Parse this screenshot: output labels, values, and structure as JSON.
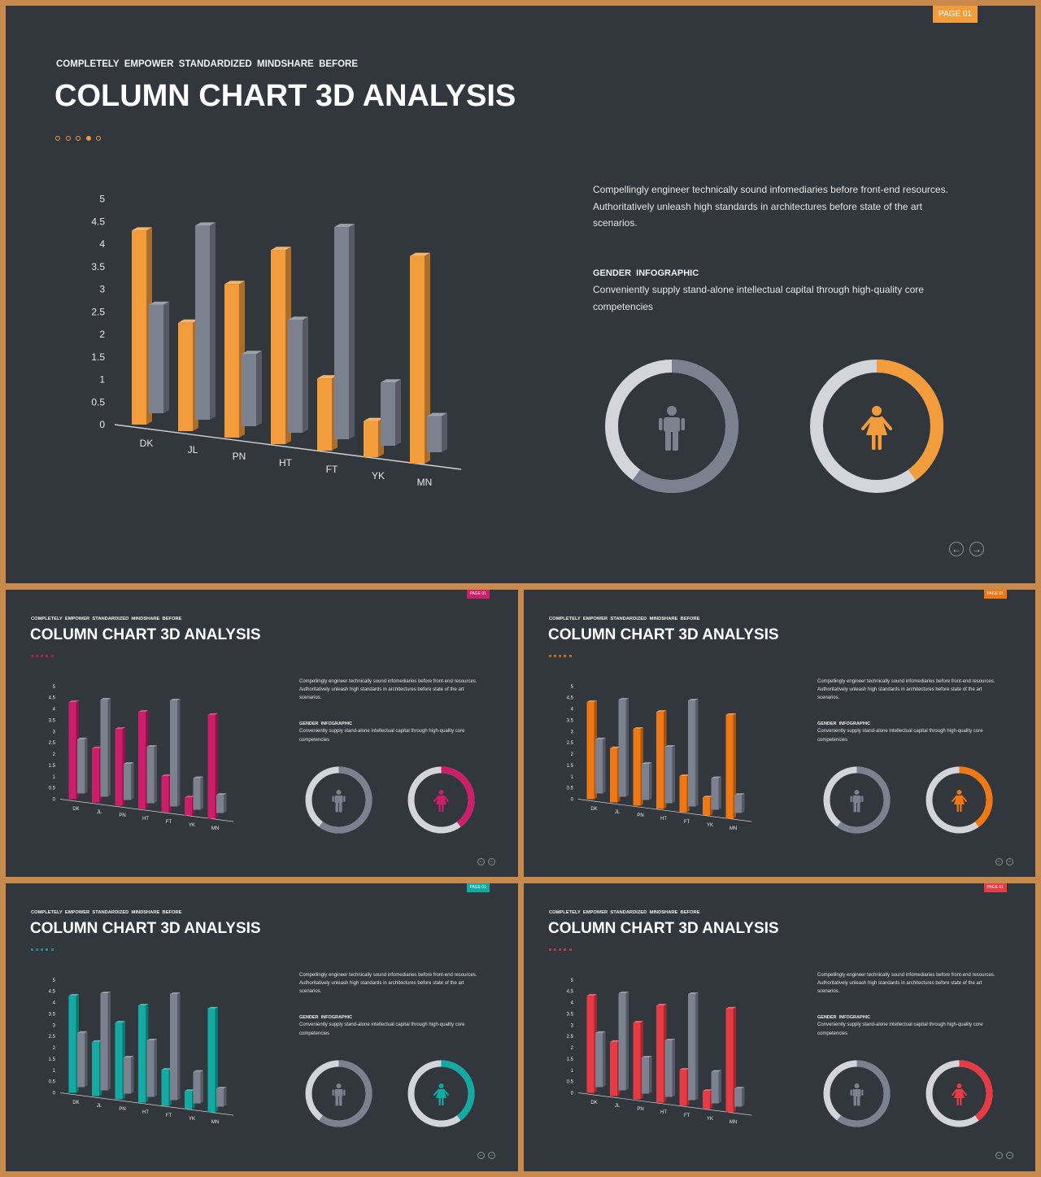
{
  "page_badge": "PAGE 01",
  "subtitle": "COMPLETELY  EMPOWER  STANDARDIZED  MINDSHARE  BEFORE",
  "title": "COLUMN CHART 3D ANALYSIS",
  "paragraph_lines": [
    "Compellingly engineer technically sound infomediaries before front-end  resources.",
    "Authoritatively unleash high standards in architectures before state of the art",
    "scenarios."
  ],
  "gender_heading": "GENDER  INFOGRAPHIC",
  "gender_text_lines": [
    "Conveniently supply stand-alone intellectual capital through high-quality core",
    "competencies"
  ],
  "nav": {
    "prev_icon": "arrow-left-circle-icon",
    "next_icon": "arrow-right-circle-icon"
  },
  "icons": {
    "male": "male-person-icon",
    "female": "female-person-icon"
  },
  "colors": {
    "background": "#32363d",
    "frame": "#c8894d",
    "gray_series": "#7c8190",
    "ring_light": "#d3d5db",
    "ring_dark": "#7c8190"
  },
  "chart_data": {
    "type": "bar",
    "style": "3d-column",
    "categories": [
      "DK",
      "JL",
      "PN",
      "HT",
      "FT",
      "YK",
      "MN"
    ],
    "series": [
      {
        "values": [
          4.3,
          2.4,
          3.4,
          4.3,
          1.6,
          0.8,
          4.6
        ]
      },
      {
        "values": [
          2.4,
          4.3,
          1.6,
          2.5,
          4.7,
          1.4,
          0.8
        ]
      }
    ],
    "yticks": [
      "0",
      "0.5",
      "1",
      "1.5",
      "2",
      "2.5",
      "3",
      "3.5",
      "4",
      "4.5",
      "5"
    ],
    "ylim": [
      0,
      5
    ],
    "grid": false,
    "legend": "none"
  },
  "gender_rings": [
    {
      "icon": "male-person-icon",
      "highlight_fraction": 0.6,
      "highlight": "gray"
    },
    {
      "icon": "female-person-icon",
      "highlight_fraction": 0.4,
      "highlight": "accent"
    }
  ],
  "slides": [
    {
      "name": "slide-main",
      "accent": "#f39c3c"
    },
    {
      "name": "slide-magenta",
      "accent": "#cc1e6a"
    },
    {
      "name": "slide-orange",
      "accent": "#f07814"
    },
    {
      "name": "slide-teal",
      "accent": "#12aaa2"
    },
    {
      "name": "slide-red",
      "accent": "#e83a44"
    }
  ]
}
